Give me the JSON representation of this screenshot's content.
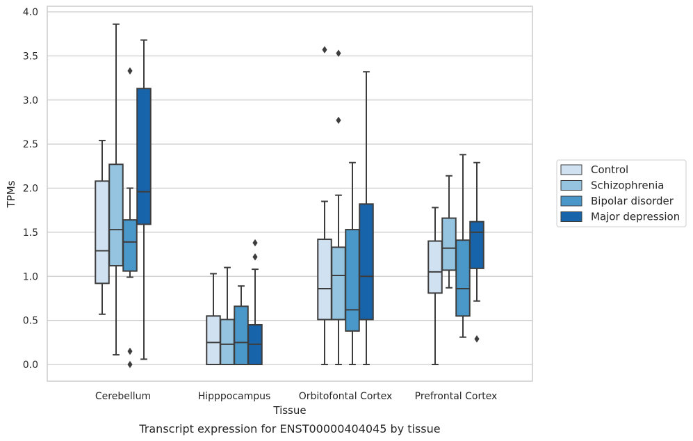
{
  "chart_data": {
    "type": "box",
    "title": "",
    "caption": "Transcript expression for ENST00000404045 by tissue",
    "xlabel": "Tissue",
    "ylabel": "TPMs",
    "ylim": [
      -0.19,
      4.06
    ],
    "yticks": [
      "0.0",
      "0.5",
      "1.0",
      "1.5",
      "2.0",
      "2.5",
      "3.0",
      "3.5",
      "4.0"
    ],
    "grid": "horizontal",
    "legend_position": "right",
    "categories": [
      "Cerebellum",
      "Hipppocampus",
      "Orbitofontal Cortex",
      "Prefrontal Cortex"
    ],
    "series": [
      {
        "name": "Control",
        "color": "#d0e1f2",
        "boxes": [
          {
            "whislo": 0.57,
            "q1": 0.92,
            "med": 1.29,
            "q3": 2.08,
            "whishi": 2.54,
            "fliers": []
          },
          {
            "whislo": 0.0,
            "q1": 0.0,
            "med": 0.25,
            "q3": 0.55,
            "whishi": 1.03,
            "fliers": []
          },
          {
            "whislo": 0.0,
            "q1": 0.51,
            "med": 0.86,
            "q3": 1.42,
            "whishi": 1.85,
            "fliers": [
              3.57
            ]
          },
          {
            "whislo": 0.0,
            "q1": 0.81,
            "med": 1.05,
            "q3": 1.4,
            "whishi": 1.78,
            "fliers": []
          }
        ]
      },
      {
        "name": "Schizophrenia",
        "color": "#94c4df",
        "boxes": [
          {
            "whislo": 0.11,
            "q1": 1.12,
            "med": 1.53,
            "q3": 2.27,
            "whishi": 3.86,
            "fliers": []
          },
          {
            "whislo": 0.0,
            "q1": 0.0,
            "med": 0.23,
            "q3": 0.51,
            "whishi": 1.1,
            "fliers": []
          },
          {
            "whislo": 0.0,
            "q1": 0.51,
            "med": 1.01,
            "q3": 1.33,
            "whishi": 1.92,
            "fliers": [
              2.77,
              3.53
            ]
          },
          {
            "whislo": 0.87,
            "q1": 1.07,
            "med": 1.32,
            "q3": 1.66,
            "whishi": 2.14,
            "fliers": []
          }
        ]
      },
      {
        "name": "Bipolar disorder",
        "color": "#4a98c9",
        "boxes": [
          {
            "whislo": 0.99,
            "q1": 1.06,
            "med": 1.39,
            "q3": 1.64,
            "whishi": 2.0,
            "fliers": [
              0.0,
              0.15,
              3.33
            ]
          },
          {
            "whislo": 0.0,
            "q1": 0.0,
            "med": 0.25,
            "q3": 0.66,
            "whishi": 0.89,
            "fliers": []
          },
          {
            "whislo": 0.0,
            "q1": 0.38,
            "med": 0.62,
            "q3": 1.53,
            "whishi": 2.29,
            "fliers": []
          },
          {
            "whislo": 0.31,
            "q1": 0.55,
            "med": 0.86,
            "q3": 1.41,
            "whishi": 2.38,
            "fliers": []
          }
        ]
      },
      {
        "name": "Major depression",
        "color": "#1764ab",
        "boxes": [
          {
            "whislo": 0.06,
            "q1": 1.59,
            "med": 1.96,
            "q3": 3.13,
            "whishi": 3.68,
            "fliers": []
          },
          {
            "whislo": 0.0,
            "q1": 0.0,
            "med": 0.23,
            "q3": 0.45,
            "whishi": 1.08,
            "fliers": [
              1.22,
              1.38
            ]
          },
          {
            "whislo": 0.0,
            "q1": 0.51,
            "med": 1.0,
            "q3": 1.82,
            "whishi": 3.32,
            "fliers": []
          },
          {
            "whislo": 0.72,
            "q1": 1.09,
            "med": 1.5,
            "q3": 1.62,
            "whishi": 2.29,
            "fliers": [
              0.29
            ]
          }
        ]
      }
    ]
  }
}
